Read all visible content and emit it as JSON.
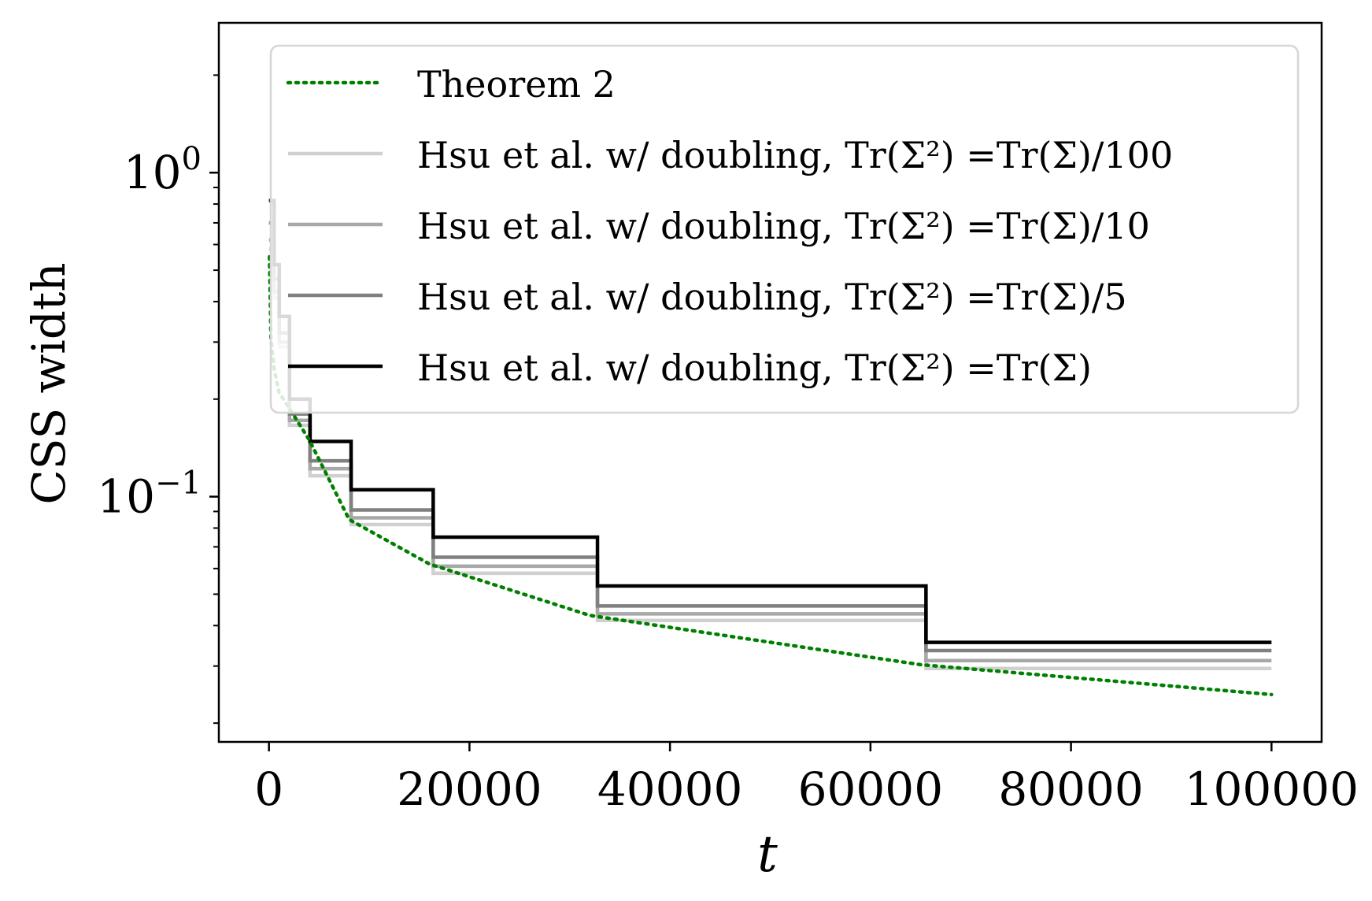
{
  "chart_data": {
    "type": "line",
    "title": "",
    "xlabel": "t",
    "ylabel": "CSS width",
    "xlim": [
      -5000,
      105000
    ],
    "ylim": [
      0.0175,
      2.9
    ],
    "yscale": "log",
    "x_ticks": [
      0,
      20000,
      40000,
      60000,
      80000,
      100000
    ],
    "x_tick_labels": [
      "0",
      "20000",
      "40000",
      "60000",
      "80000",
      "100000"
    ],
    "y_ticks": [
      0.1,
      1
    ],
    "y_tick_labels": [
      {
        "base": "10",
        "exp": "−1"
      },
      {
        "base": "10",
        "exp": "0"
      }
    ],
    "grid": false,
    "legend_position": "upper right",
    "series": [
      {
        "name": "Theorem 2",
        "color": "#008000",
        "style": "dotted",
        "formula_hint": "approx c / sqrt(t)",
        "x": [
          50,
          200,
          500,
          1000,
          2000,
          4000,
          8000,
          16000,
          32000,
          65000,
          100000
        ],
        "y": [
          0.55,
          0.31,
          0.25,
          0.21,
          0.188,
          0.15,
          0.085,
          0.062,
          0.043,
          0.0303,
          0.0245
        ]
      },
      {
        "name": "Hsu et al. w/ doubling, Tr(Σ²) =Tr(Σ)/100",
        "color": "#d0d0d0",
        "style": "solid",
        "step_x": [
          0,
          512,
          1024,
          2048,
          4096,
          8192,
          16384,
          32768,
          65536,
          100000
        ],
        "step_y": [
          0.58,
          0.41,
          0.29,
          0.166,
          0.116,
          0.082,
          0.058,
          0.0415,
          0.0295,
          0.0295
        ]
      },
      {
        "name": "Hsu et al. w/ doubling, Tr(Σ²) =Tr(Σ)/10",
        "color": "#a8a8a8",
        "style": "solid",
        "step_x": [
          0,
          512,
          1024,
          2048,
          4096,
          8192,
          16384,
          32768,
          65536,
          100000
        ],
        "step_y": [
          0.62,
          0.43,
          0.3,
          0.172,
          0.122,
          0.086,
          0.061,
          0.0435,
          0.0312,
          0.0312
        ]
      },
      {
        "name": "Hsu et al. w/ doubling, Tr(Σ²) =Tr(Σ)/5",
        "color": "#808080",
        "style": "solid",
        "step_x": [
          0,
          512,
          1024,
          2048,
          4096,
          8192,
          16384,
          32768,
          65536,
          100000
        ],
        "step_y": [
          0.7,
          0.47,
          0.32,
          0.18,
          0.129,
          0.091,
          0.065,
          0.046,
          0.0335,
          0.0335
        ]
      },
      {
        "name": "Hsu et al. w/ doubling, Tr(Σ²) =Tr(Σ)",
        "color": "#000000",
        "style": "solid",
        "step_x": [
          0,
          512,
          1024,
          2048,
          4096,
          8192,
          16384,
          32768,
          65536,
          100000
        ],
        "step_y": [
          0.82,
          0.52,
          0.36,
          0.2,
          0.148,
          0.105,
          0.075,
          0.053,
          0.0355,
          0.0355
        ]
      }
    ]
  }
}
